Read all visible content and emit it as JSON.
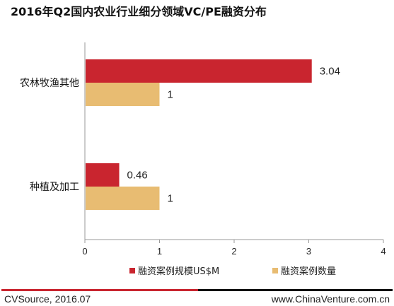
{
  "chart_data": {
    "type": "bar",
    "orientation": "horizontal",
    "title": "2016年Q2国内农业行业细分领域VC/PE融资分布",
    "categories": [
      "农林牧渔其他",
      "种植及加工"
    ],
    "series": [
      {
        "name": "融资案例规模US$M",
        "values": [
          3.04,
          0.46
        ],
        "color": "#c9252f"
      },
      {
        "name": "融资案例数量",
        "values": [
          1,
          1
        ],
        "color": "#e8bc72"
      }
    ],
    "xlim": [
      0,
      4
    ],
    "xticks": [
      "0",
      "1",
      "2",
      "3",
      "4"
    ],
    "grid": false,
    "legend_position": "bottom"
  },
  "footer": {
    "source": "CVSource, 2016.07",
    "website": "www.ChinaVenture.com.cn",
    "rule_colors": [
      "#c9252f",
      "#111111"
    ]
  }
}
